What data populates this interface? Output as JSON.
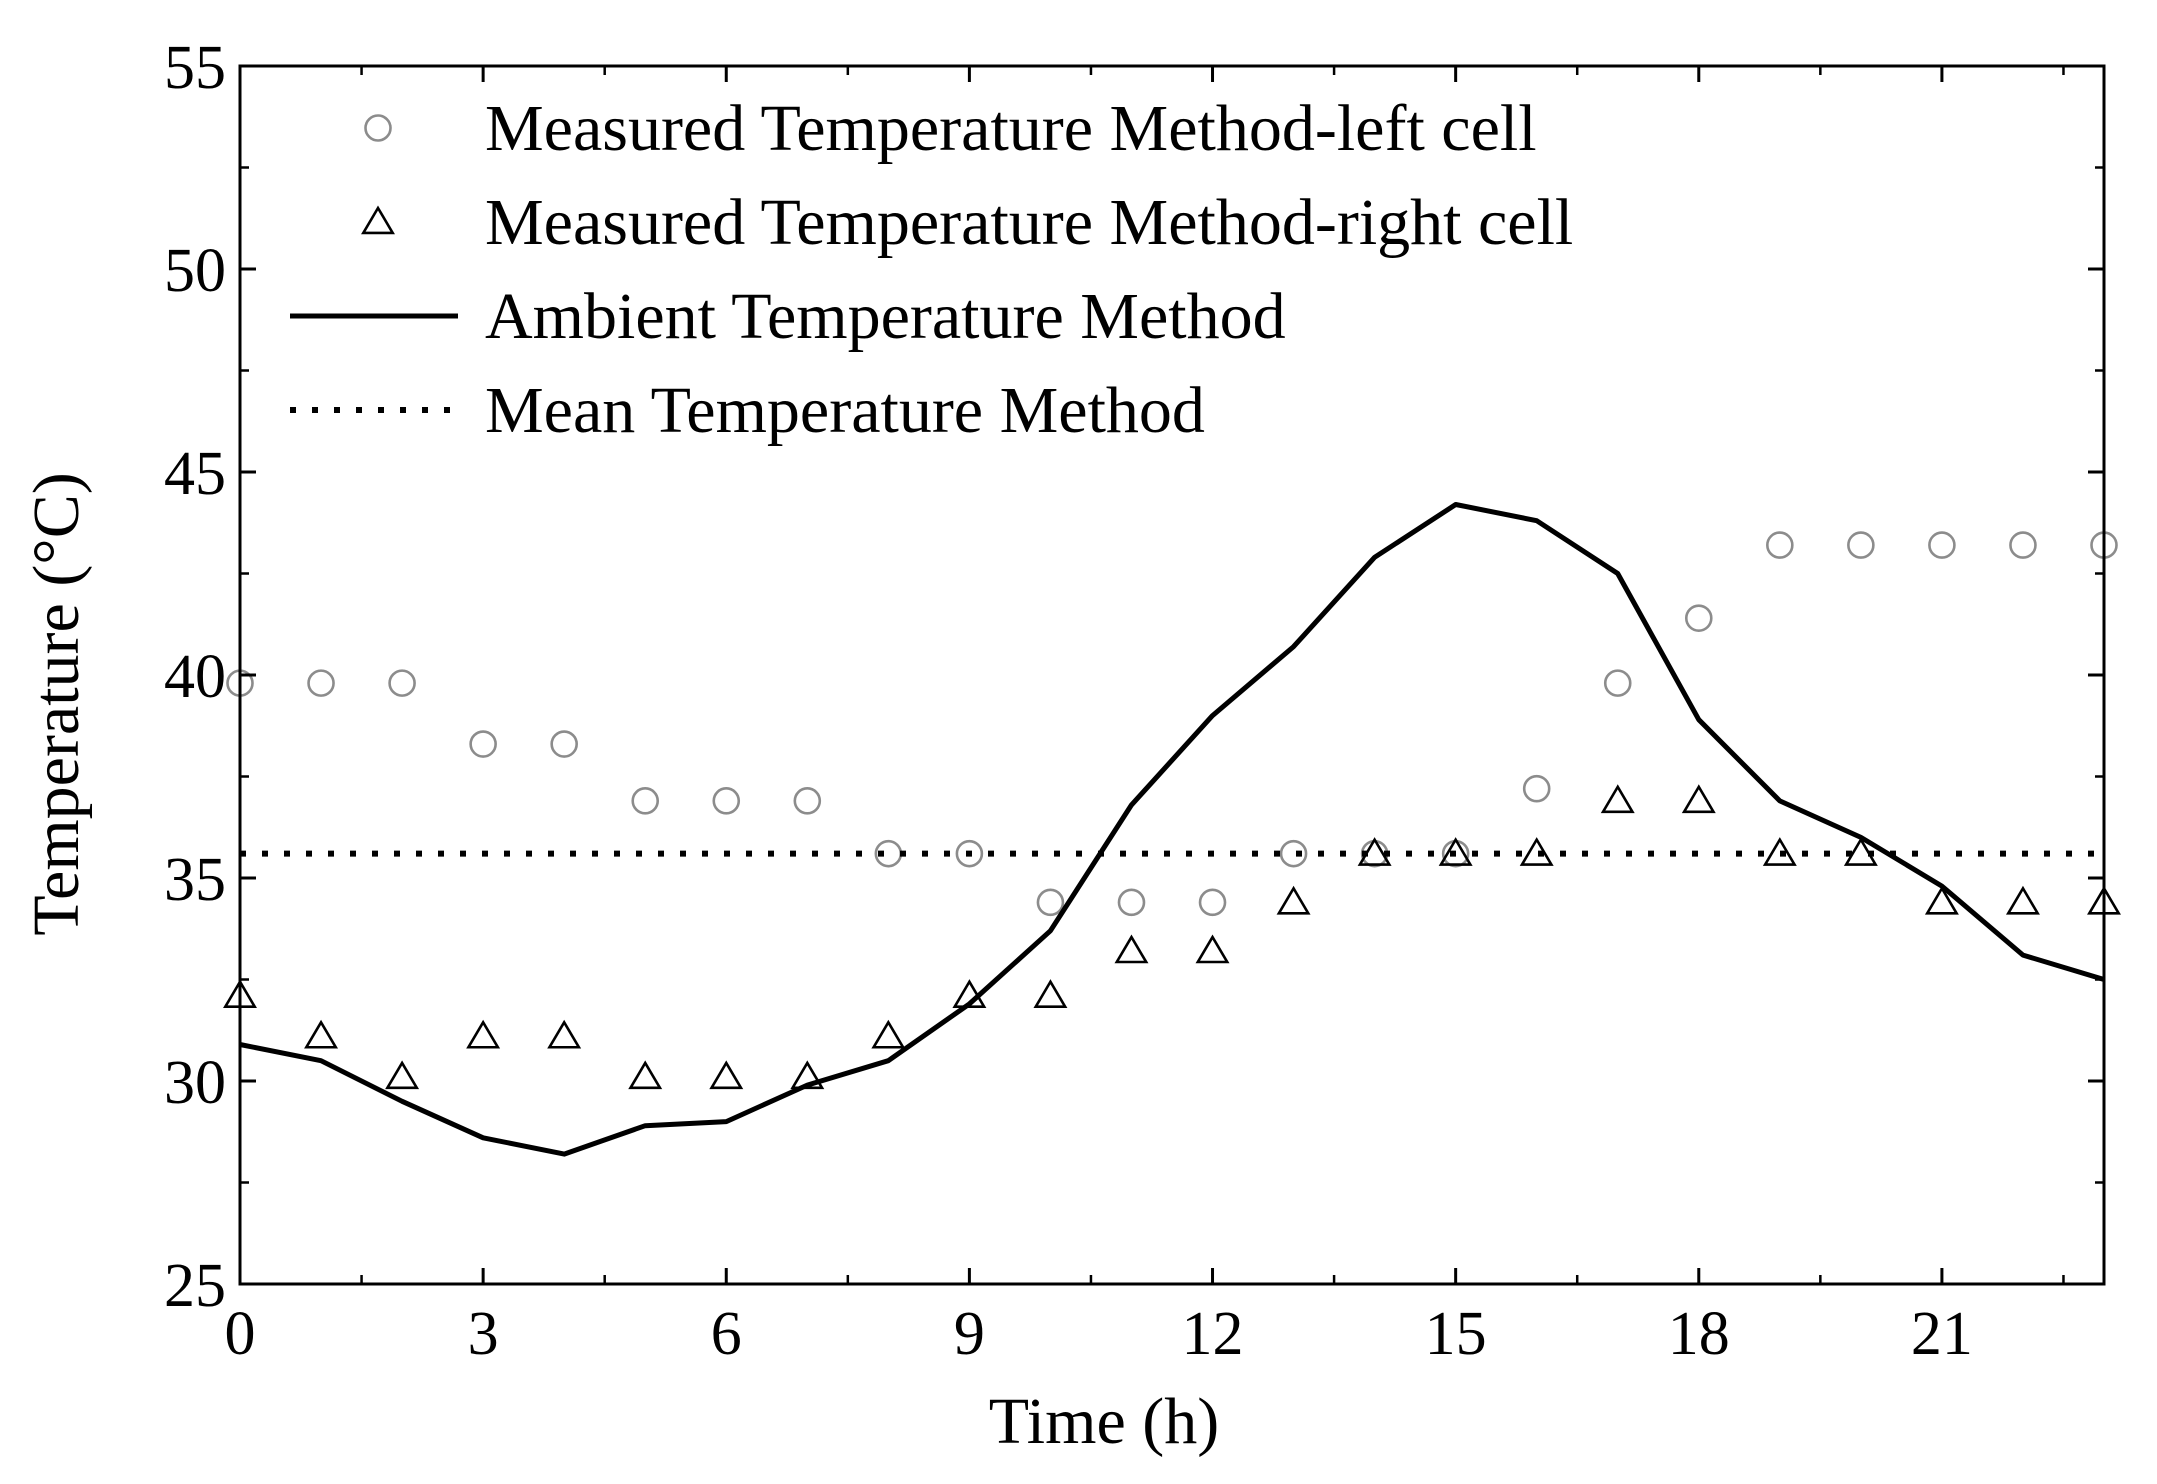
{
  "chart_data": {
    "type": "line",
    "title": "",
    "xlabel": "Time (h)",
    "ylabel": "Temperature (°C)",
    "xlim": [
      0,
      23
    ],
    "ylim": [
      25,
      55
    ],
    "xticks": [
      0,
      3,
      6,
      9,
      12,
      15,
      18,
      21
    ],
    "yticks": [
      25,
      30,
      35,
      40,
      45,
      50,
      55
    ],
    "legend_position": "top-left",
    "grid": false,
    "x": [
      0,
      1,
      2,
      3,
      4,
      5,
      6,
      7,
      8,
      9,
      10,
      11,
      12,
      13,
      14,
      15,
      16,
      17,
      18,
      19,
      20,
      21,
      22,
      23
    ],
    "series": [
      {
        "name": "Measured Temperature Method-left cell",
        "style": "circle-markers",
        "color": "#8c8c8c",
        "values": [
          39.8,
          39.8,
          39.8,
          38.3,
          38.3,
          36.9,
          36.9,
          36.9,
          35.6,
          35.6,
          34.4,
          34.4,
          34.4,
          35.6,
          35.6,
          35.6,
          37.2,
          39.8,
          41.4,
          43.2,
          43.2,
          43.2,
          43.2,
          43.2
        ]
      },
      {
        "name": "Measured Temperature Method-right cell",
        "style": "triangle-markers",
        "color": "#000000",
        "values": [
          32.1,
          31.1,
          30.1,
          31.1,
          31.1,
          30.1,
          30.1,
          30.1,
          31.1,
          32.1,
          32.1,
          33.2,
          33.2,
          34.4,
          35.6,
          35.6,
          35.6,
          36.9,
          36.9,
          35.6,
          35.6,
          34.4,
          34.4,
          34.4
        ]
      },
      {
        "name": "Ambient Temperature Method",
        "style": "solid-line",
        "color": "#000000",
        "values": [
          30.9,
          30.5,
          29.5,
          28.6,
          28.2,
          28.9,
          29.0,
          29.9,
          30.5,
          31.9,
          33.7,
          36.8,
          39.0,
          40.7,
          42.9,
          44.2,
          43.8,
          42.5,
          38.9,
          36.9,
          36.0,
          34.8,
          33.1,
          32.5
        ]
      },
      {
        "name": "Mean Temperature Method",
        "style": "dotted-line",
        "color": "#000000",
        "values": [
          35.6,
          35.6,
          35.6,
          35.6,
          35.6,
          35.6,
          35.6,
          35.6,
          35.6,
          35.6,
          35.6,
          35.6,
          35.6,
          35.6,
          35.6,
          35.6,
          35.6,
          35.6,
          35.6,
          35.6,
          35.6,
          35.6,
          35.6,
          35.6
        ]
      }
    ]
  }
}
